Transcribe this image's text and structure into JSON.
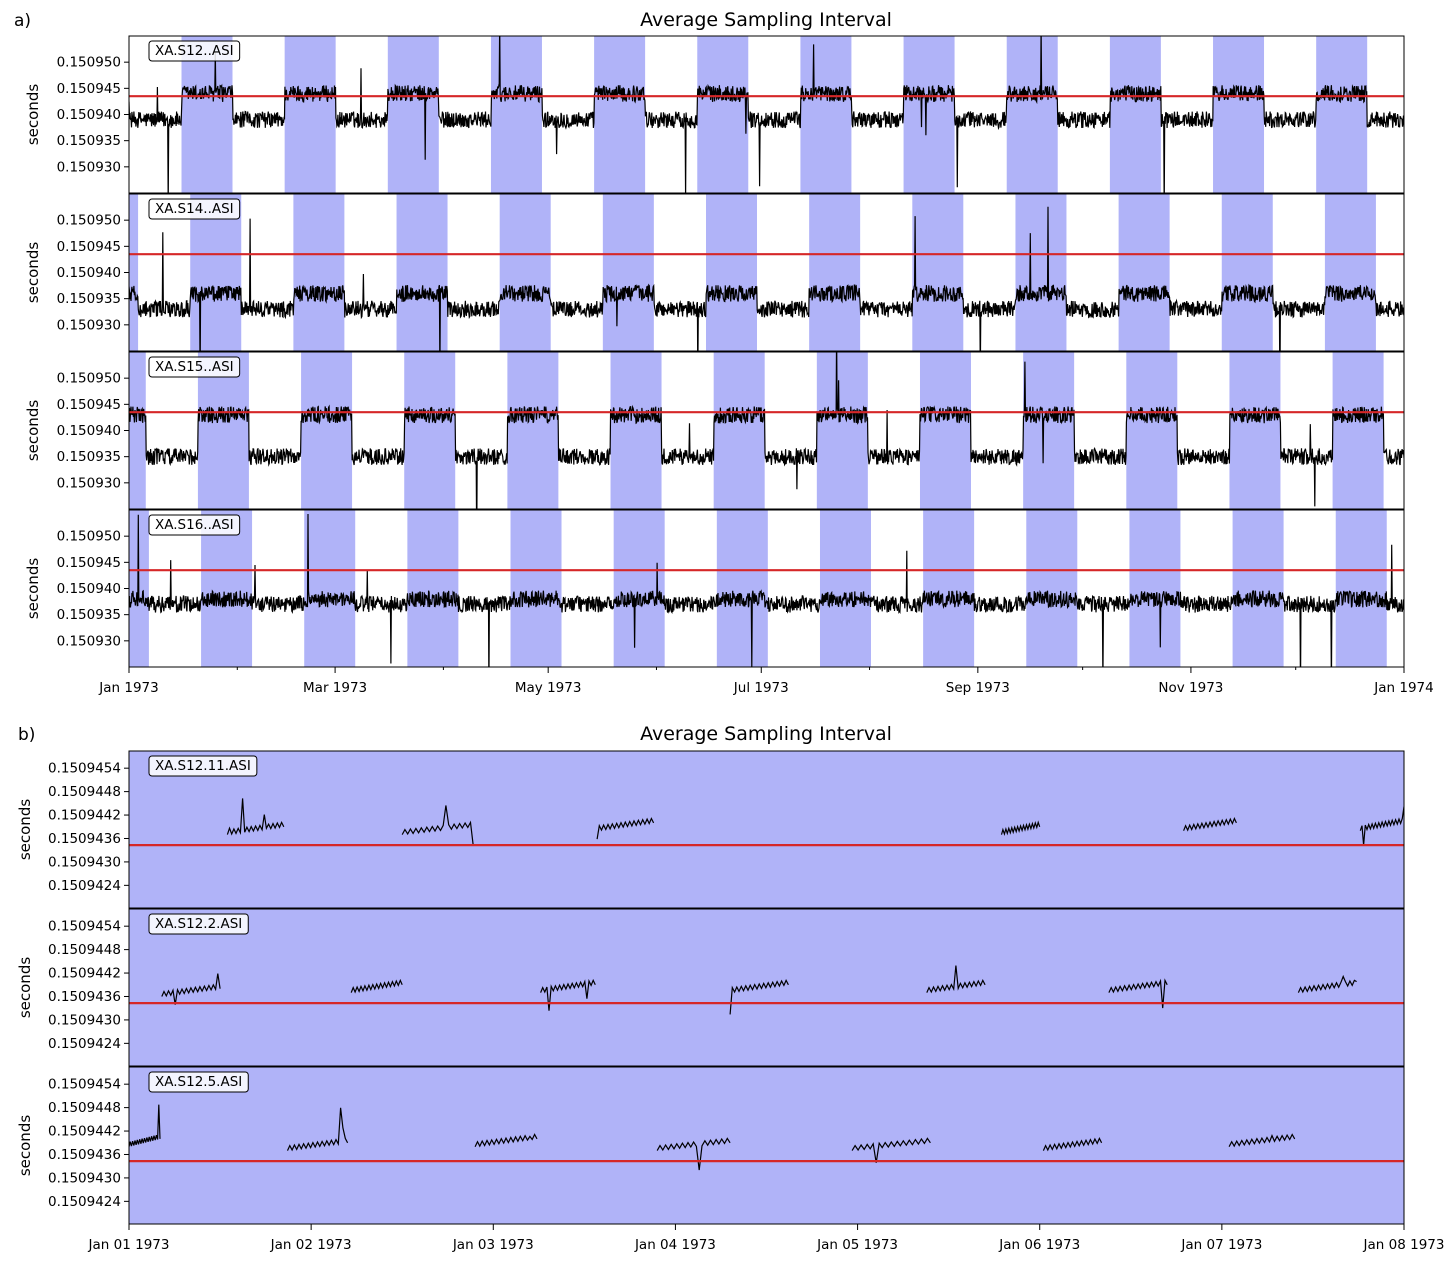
{
  "chart_data": [
    {
      "type": "line",
      "panel_label": "a)",
      "title": "Average Sampling Interval",
      "ylabel": "seconds",
      "xlabel": "",
      "x_ticks": [
        "Jan 1973",
        "Mar 1973",
        "May 1973",
        "Jul 1973",
        "Sep 1973",
        "Nov 1973",
        "Jan 1974"
      ],
      "x_tick_values": [
        0,
        59,
        120,
        181,
        243,
        304,
        365
      ],
      "x_range_days": [
        0,
        365
      ],
      "y_ticks": [
        "0.150950",
        "0.150945",
        "0.150940",
        "0.150935",
        "0.150930"
      ],
      "y_tick_values": [
        0.15095,
        0.150945,
        0.15094,
        0.150935,
        0.15093
      ],
      "ylim": [
        0.150925,
        0.150955
      ],
      "reference_line": {
        "value": 0.1509435,
        "color": "#d62728"
      },
      "shading_color": "#b0b3f8",
      "grid": false,
      "series": [
        {
          "label": "XA.S12..ASI",
          "shade_period_days": 29.53,
          "shade_start_days": -14.5,
          "shade_width_days": 14.6,
          "day_level": 0.150944,
          "night_level": 0.150939
        },
        {
          "label": "XA.S14..ASI",
          "shade_period_days": 29.53,
          "shade_start_days": -12.0,
          "shade_width_days": 14.6,
          "day_level": 0.150936,
          "night_level": 0.150933
        },
        {
          "label": "XA.S15..ASI",
          "shade_period_days": 29.53,
          "shade_start_days": -9.8,
          "shade_width_days": 14.6,
          "day_level": 0.150943,
          "night_level": 0.150935
        },
        {
          "label": "XA.S16..ASI",
          "shade_period_days": 29.53,
          "shade_start_days": -8.9,
          "shade_width_days": 14.6,
          "day_level": 0.150938,
          "night_level": 0.150937
        }
      ]
    },
    {
      "type": "line",
      "panel_label": "b)",
      "title": "Average Sampling Interval",
      "ylabel": "seconds",
      "xlabel": "",
      "x_ticks": [
        "Jan 01 1973",
        "Jan 02 1973",
        "Jan 03 1973",
        "Jan 04 1973",
        "Jan 05 1973",
        "Jan 06 1973",
        "Jan 07 1973",
        "Jan 08 1973"
      ],
      "x_tick_values": [
        0,
        1,
        2,
        3,
        4,
        5,
        6,
        7
      ],
      "x_range_days": [
        0,
        7
      ],
      "y_ticks": [
        "0.1509454",
        "0.1509448",
        "0.1509442",
        "0.1509436",
        "0.1509430",
        "0.1509424"
      ],
      "y_tick_values": [
        0.1509454,
        0.1509448,
        0.1509442,
        0.1509436,
        0.150943,
        0.1509424
      ],
      "ylim": [
        0.15094182,
        0.15094584
      ],
      "reference_line": {
        "value": 0.15094343,
        "color": "#d62728"
      },
      "background_color": "#b0b3f8",
      "grid": false,
      "series": [
        {
          "label": "XA.S12.11.ASI",
          "segments": [
            [
              0.54,
              0.85,
              0.1509437
            ],
            [
              1.5,
              1.89,
              0.1509437
            ],
            [
              2.57,
              2.88,
              0.1509438
            ],
            [
              4.79,
              5.0,
              0.1509437
            ],
            [
              5.79,
              6.08,
              0.1509438
            ],
            [
              6.76,
              7.0,
              0.1509438
            ]
          ]
        },
        {
          "label": "XA.S12.2.ASI",
          "segments": [
            [
              0.18,
              0.5,
              0.1509436
            ],
            [
              1.22,
              1.5,
              0.1509437
            ],
            [
              2.26,
              2.56,
              0.1509437
            ],
            [
              3.3,
              3.62,
              0.1509437
            ],
            [
              4.38,
              4.7,
              0.1509437
            ],
            [
              5.38,
              5.7,
              0.1509437
            ],
            [
              6.42,
              6.74,
              0.1509437
            ]
          ]
        },
        {
          "label": "XA.S12.5.ASI",
          "segments": [
            [
              0.0,
              0.17,
              0.1509438
            ],
            [
              0.87,
              1.2,
              0.1509437
            ],
            [
              1.9,
              2.24,
              0.1509438
            ],
            [
              2.9,
              3.3,
              0.1509437
            ],
            [
              3.97,
              4.4,
              0.1509437
            ],
            [
              5.02,
              5.34,
              0.1509437
            ],
            [
              6.04,
              6.4,
              0.1509438
            ]
          ]
        }
      ]
    }
  ]
}
